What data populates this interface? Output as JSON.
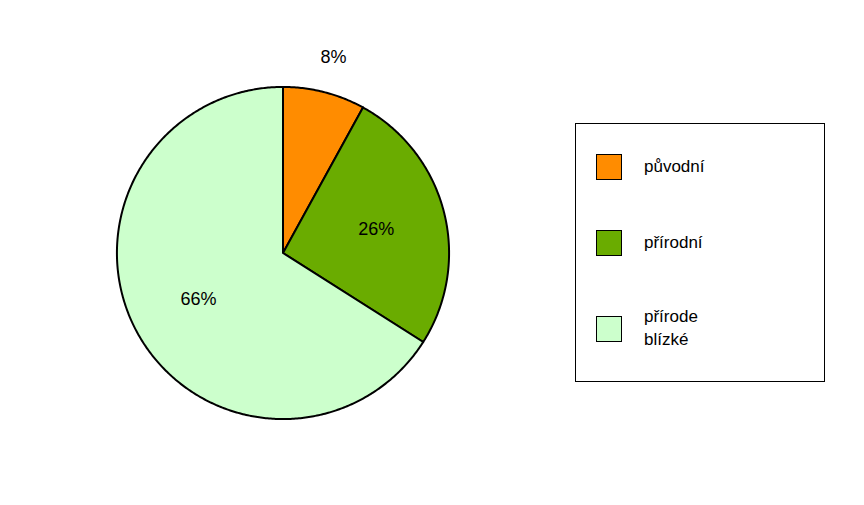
{
  "chart_data": {
    "type": "pie",
    "categories": [
      "původní",
      "přírodní",
      "přírode\nblízké"
    ],
    "values": [
      8,
      26,
      66
    ],
    "value_labels": [
      "8%",
      "26%",
      "66%"
    ],
    "colors": [
      "#FF8C00",
      "#6AAC00",
      "#CCFFCC"
    ],
    "data_labels": true,
    "legend": "right"
  }
}
